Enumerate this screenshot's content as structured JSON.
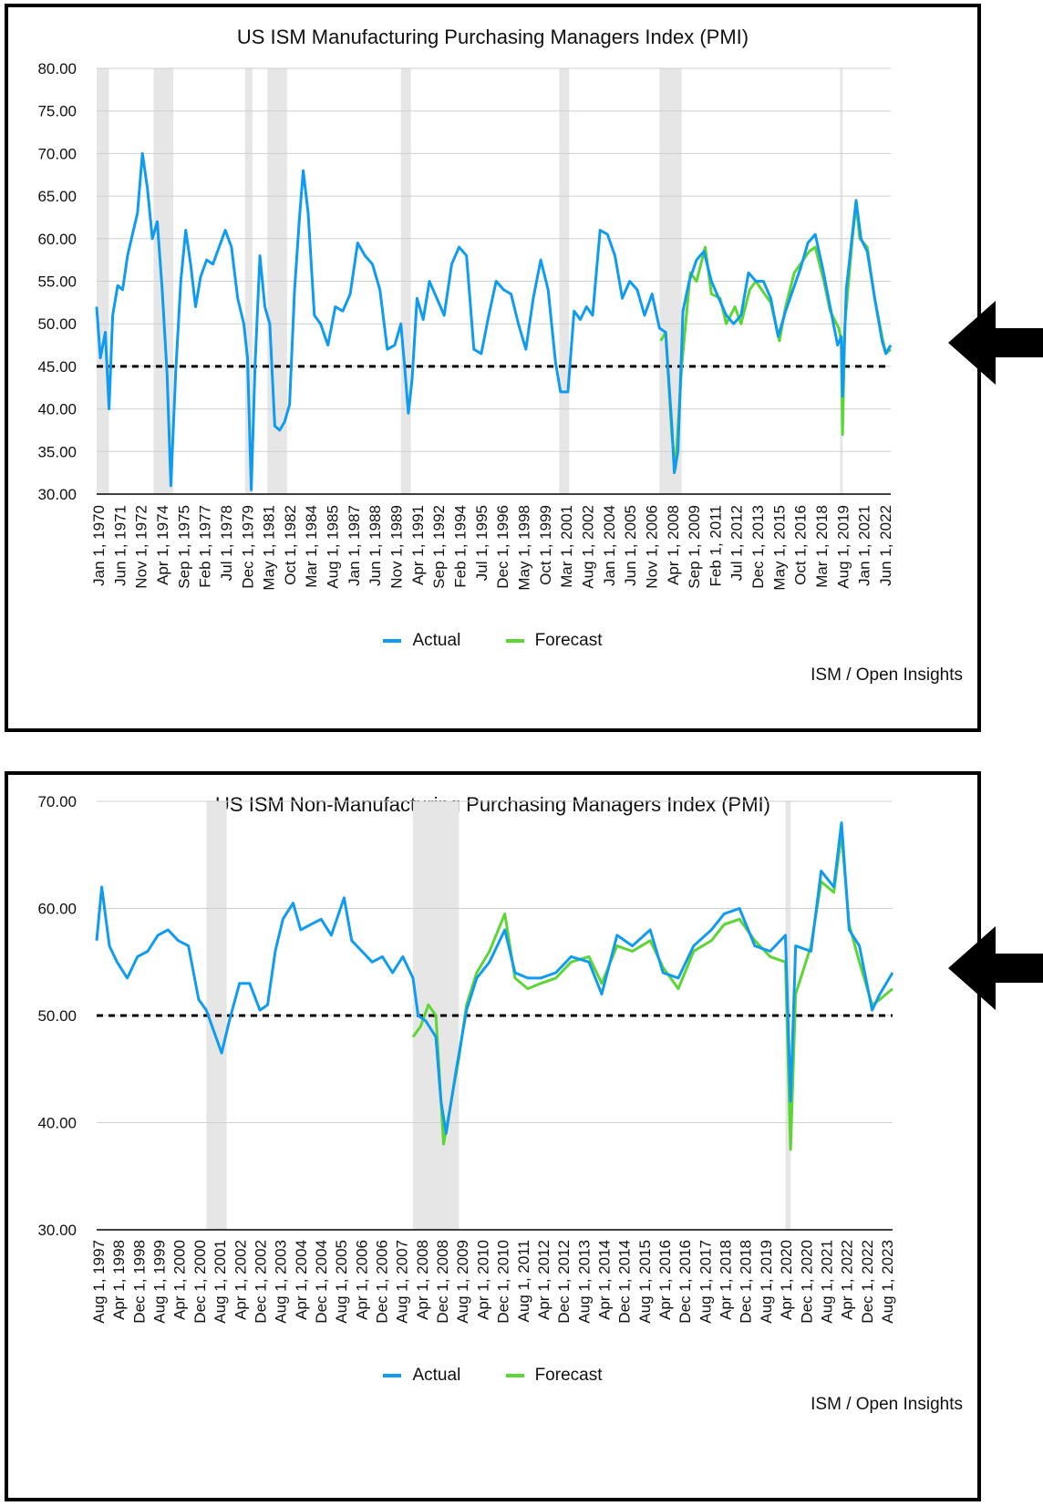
{
  "colors": {
    "actual": "#0f9bf0",
    "forecast": "#5cd634",
    "recession": "#e6e6e6",
    "grid": "#cfcfcf"
  },
  "icons": {
    "pointer": "arrow-left-icon"
  },
  "charts": [
    {
      "type": "line",
      "title": "US ISM Manufacturing Purchasing Managers Index (PMI)",
      "source": "ISM / Open Insights",
      "legend": {
        "actual": "Actual",
        "forecast": "Forecast"
      },
      "ylim": [
        30,
        80
      ],
      "ytick_labels": [
        "30.00",
        "35.00",
        "40.00",
        "45.00",
        "50.00",
        "55.00",
        "60.00",
        "65.00",
        "70.00",
        "75.00",
        "80.00"
      ],
      "xlim": [
        "Jan 1, 1970",
        "Jul 1, 2023"
      ],
      "x_tick_labels": [
        "Jan 1, 1970",
        "Jun 1, 1971",
        "Nov 1, 1972",
        "Apr 1, 1974",
        "Sep 1, 1975",
        "Feb 1, 1977",
        "Jul 1, 1978",
        "Dec 1, 1979",
        "May 1, 1981",
        "Oct 1, 1982",
        "Mar 1, 1984",
        "Aug 1, 1985",
        "Jan 1, 1987",
        "Jun 1, 1988",
        "Nov 1, 1989",
        "Apr 1, 1991",
        "Sep 1, 1992",
        "Feb 1, 1994",
        "Jul 1, 1995",
        "Dec 1, 1996",
        "May 1, 1998",
        "Oct 1, 1999",
        "Mar 1, 2001",
        "Aug 1, 2002",
        "Jan 1, 2004",
        "Jun 1, 2005",
        "Nov 1, 2006",
        "Apr 1, 2008",
        "Sep 1, 2009",
        "Feb 1, 2011",
        "Jul 1, 2012",
        "Dec 1, 2013",
        "May 1, 2015",
        "Oct 1, 2016",
        "Mar 1, 2018",
        "Aug 1, 2019",
        "Jan 1, 2021",
        "Jun 1, 2022"
      ],
      "reference_line": 45,
      "recessions": [
        [
          "1970-01",
          "1970-11"
        ],
        [
          "1973-11",
          "1975-03"
        ],
        [
          "1980-01",
          "1980-07"
        ],
        [
          "1981-07",
          "1982-11"
        ],
        [
          "1990-07",
          "1991-03"
        ],
        [
          "2001-03",
          "2001-11"
        ],
        [
          "2007-12",
          "2009-06"
        ],
        [
          "2020-02",
          "2020-04"
        ]
      ],
      "series": [
        {
          "name": "Actual",
          "role": "actual",
          "x": [
            "1970-01",
            "1970-04",
            "1970-08",
            "1970-11",
            "1971-02",
            "1971-06",
            "1971-10",
            "1972-02",
            "1972-06",
            "1972-10",
            "1973-02",
            "1973-06",
            "1973-10",
            "1974-02",
            "1974-06",
            "1974-10",
            "1975-01",
            "1975-05",
            "1975-09",
            "1976-01",
            "1976-05",
            "1976-09",
            "1977-01",
            "1977-06",
            "1977-11",
            "1978-04",
            "1978-09",
            "1979-02",
            "1979-07",
            "1979-12",
            "1980-03",
            "1980-06",
            "1980-09",
            "1981-01",
            "1981-05",
            "1981-09",
            "1982-01",
            "1982-05",
            "1982-09",
            "1983-01",
            "1983-05",
            "1983-09",
            "1983-12",
            "1984-04",
            "1984-09",
            "1985-02",
            "1985-08",
            "1986-02",
            "1986-08",
            "1987-02",
            "1987-08",
            "1988-02",
            "1988-08",
            "1989-02",
            "1989-08",
            "1990-02",
            "1990-07",
            "1990-10",
            "1991-01",
            "1991-04",
            "1991-08",
            "1992-01",
            "1992-06",
            "1992-12",
            "1993-06",
            "1993-12",
            "1994-06",
            "1994-12",
            "1995-06",
            "1995-12",
            "1996-06",
            "1996-12",
            "1997-06",
            "1997-12",
            "1998-06",
            "1998-12",
            "1999-06",
            "1999-12",
            "2000-06",
            "2000-12",
            "2001-04",
            "2001-10",
            "2002-03",
            "2002-08",
            "2003-01",
            "2003-06",
            "2003-12",
            "2004-06",
            "2004-12",
            "2005-06",
            "2005-12",
            "2006-06",
            "2006-12",
            "2007-06",
            "2007-12",
            "2008-05",
            "2008-10",
            "2008-12",
            "2009-03",
            "2009-07",
            "2009-12",
            "2010-06",
            "2010-12",
            "2011-06",
            "2011-12",
            "2012-06",
            "2012-12",
            "2013-06",
            "2013-12",
            "2014-06",
            "2014-12",
            "2015-06",
            "2015-12",
            "2016-06",
            "2016-12",
            "2017-06",
            "2017-12",
            "2018-06",
            "2018-12",
            "2019-06",
            "2019-12",
            "2020-03",
            "2020-04",
            "2020-07",
            "2020-12",
            "2021-03",
            "2021-07",
            "2021-12",
            "2022-06",
            "2022-12",
            "2023-03",
            "2023-07"
          ],
          "values": [
            52.0,
            46.0,
            49.0,
            40.0,
            51.0,
            54.5,
            54.0,
            58.0,
            60.5,
            63.0,
            70.0,
            66.0,
            60.0,
            62.0,
            54.0,
            44.0,
            31.0,
            44.5,
            55.0,
            61.0,
            57.0,
            52.0,
            55.5,
            57.5,
            57.0,
            59.0,
            61.0,
            59.0,
            53.0,
            50.0,
            46.0,
            30.5,
            45.0,
            58.0,
            52.0,
            50.0,
            38.0,
            37.5,
            38.5,
            40.5,
            54.0,
            62.5,
            68.0,
            63.0,
            51.0,
            50.0,
            47.5,
            52.0,
            51.5,
            53.5,
            59.5,
            58.0,
            57.0,
            54.0,
            47.0,
            47.5,
            50.0,
            45.0,
            39.5,
            43.5,
            53.0,
            50.5,
            55.0,
            53.0,
            51.0,
            57.0,
            59.0,
            58.0,
            47.0,
            46.5,
            51.0,
            55.0,
            54.0,
            53.5,
            50.0,
            47.0,
            53.0,
            57.5,
            54.0,
            45.5,
            42.0,
            42.0,
            51.5,
            50.5,
            52.0,
            51.0,
            61.0,
            60.5,
            58.0,
            53.0,
            55.0,
            54.0,
            51.0,
            53.5,
            49.5,
            49.0,
            38.0,
            32.5,
            35.0,
            51.5,
            55.0,
            57.5,
            58.5,
            55.0,
            53.0,
            51.0,
            50.0,
            51.0,
            56.0,
            55.0,
            55.0,
            53.0,
            48.5,
            51.5,
            54.0,
            56.5,
            59.5,
            60.5,
            56.5,
            52.0,
            47.5,
            48.5,
            41.5,
            54.0,
            60.5,
            64.5,
            60.0,
            58.5,
            53.0,
            48.0,
            46.5,
            47.5
          ]
        },
        {
          "name": "Forecast",
          "role": "forecast",
          "x": [
            "2008-01",
            "2008-05",
            "2008-10",
            "2009-01",
            "2009-06",
            "2010-01",
            "2010-06",
            "2011-01",
            "2011-06",
            "2012-01",
            "2012-06",
            "2013-01",
            "2013-06",
            "2014-01",
            "2014-06",
            "2015-01",
            "2015-06",
            "2016-01",
            "2016-06",
            "2017-01",
            "2017-06",
            "2018-01",
            "2018-06",
            "2019-01",
            "2019-06",
            "2020-01",
            "2020-03",
            "2020-04",
            "2020-06",
            "2020-12",
            "2021-03",
            "2021-06",
            "2021-12",
            "2022-06",
            "2022-12",
            "2023-03",
            "2023-07"
          ],
          "values": [
            48.0,
            49.0,
            37.0,
            33.0,
            45.0,
            56.0,
            55.0,
            59.0,
            53.5,
            53.0,
            50.0,
            52.0,
            50.0,
            54.0,
            55.0,
            53.5,
            52.5,
            48.0,
            52.0,
            56.0,
            57.0,
            58.5,
            59.0,
            55.0,
            51.5,
            49.5,
            48.0,
            37.0,
            50.0,
            60.0,
            64.0,
            60.0,
            59.0,
            53.0,
            48.5,
            46.5,
            47.0
          ]
        }
      ]
    },
    {
      "type": "line",
      "title": "US ISM Non-Manufacturing Purchasing Managers Index (PMI)",
      "source": "ISM / Open Insights",
      "legend": {
        "actual": "Actual",
        "forecast": "Forecast"
      },
      "ylim": [
        30,
        70
      ],
      "ytick_labels": [
        "30.00",
        "40.00",
        "50.00",
        "60.00",
        "70.00"
      ],
      "xlim": [
        "Aug 1, 1997",
        "Aug 1, 2023"
      ],
      "x_tick_labels": [
        "Aug 1, 1997",
        "Apr 1, 1998",
        "Dec 1, 1998",
        "Aug 1, 1999",
        "Apr 1, 2000",
        "Dec 1, 2000",
        "Aug 1, 2001",
        "Apr 1, 2002",
        "Dec 1, 2002",
        "Aug 1, 2003",
        "Apr 1, 2004",
        "Dec 1, 2004",
        "Aug 1, 2005",
        "Apr 1, 2006",
        "Dec 1, 2006",
        "Aug 1, 2007",
        "Apr 1, 2008",
        "Dec 1, 2008",
        "Aug 1, 2009",
        "Apr 1, 2010",
        "Dec 1, 2010",
        "Aug 1, 2011",
        "Apr 1, 2012",
        "Dec 1, 2012",
        "Aug 1, 2013",
        "Apr 1, 2014",
        "Dec 1, 2014",
        "Aug 1, 2015",
        "Apr 1, 2016",
        "Dec 1, 2016",
        "Aug 1, 2017",
        "Apr 1, 2018",
        "Dec 1, 2018",
        "Aug 1, 2019",
        "Apr 1, 2020",
        "Dec 1, 2020",
        "Aug 1, 2021",
        "Apr 1, 2022",
        "Dec 1, 2022",
        "Aug 1, 2023"
      ],
      "reference_line": 50,
      "recessions": [
        [
          "2001-03",
          "2001-11"
        ],
        [
          "2007-12",
          "2009-06"
        ],
        [
          "2020-02",
          "2020-04"
        ]
      ],
      "series": [
        {
          "name": "Actual",
          "role": "actual",
          "x": [
            "1997-08",
            "1997-10",
            "1998-01",
            "1998-04",
            "1998-08",
            "1998-12",
            "1999-04",
            "1999-08",
            "1999-12",
            "2000-04",
            "2000-08",
            "2000-12",
            "2001-03",
            "2001-06",
            "2001-09",
            "2001-12",
            "2002-04",
            "2002-08",
            "2002-12",
            "2003-03",
            "2003-06",
            "2003-09",
            "2004-01",
            "2004-04",
            "2004-08",
            "2004-12",
            "2005-04",
            "2005-09",
            "2005-12",
            "2006-04",
            "2006-08",
            "2006-12",
            "2007-04",
            "2007-08",
            "2007-12",
            "2008-02",
            "2008-05",
            "2008-09",
            "2008-11",
            "2009-01",
            "2009-05",
            "2009-09",
            "2010-01",
            "2010-06",
            "2010-12",
            "2011-04",
            "2011-09",
            "2012-02",
            "2012-08",
            "2013-02",
            "2013-09",
            "2014-02",
            "2014-08",
            "2015-02",
            "2015-09",
            "2016-02",
            "2016-08",
            "2017-02",
            "2017-09",
            "2018-02",
            "2018-08",
            "2019-02",
            "2019-08",
            "2020-02",
            "2020-04",
            "2020-06",
            "2020-12",
            "2021-04",
            "2021-09",
            "2021-12",
            "2022-03",
            "2022-07",
            "2022-12",
            "2023-03",
            "2023-08"
          ],
          "values": [
            57.0,
            62.0,
            56.5,
            55.0,
            53.5,
            55.5,
            56.0,
            57.5,
            58.0,
            57.0,
            56.5,
            51.5,
            50.5,
            48.5,
            46.5,
            49.5,
            53.0,
            53.0,
            50.5,
            51.0,
            56.0,
            59.0,
            60.5,
            58.0,
            58.5,
            59.0,
            57.5,
            61.0,
            57.0,
            56.0,
            55.0,
            55.5,
            54.0,
            55.5,
            53.5,
            50.0,
            49.5,
            48.0,
            42.0,
            39.0,
            45.0,
            50.5,
            53.5,
            55.0,
            58.0,
            54.0,
            53.5,
            53.5,
            54.0,
            55.5,
            55.0,
            52.0,
            57.5,
            56.5,
            58.0,
            54.0,
            53.5,
            56.5,
            58.0,
            59.5,
            60.0,
            56.5,
            56.0,
            57.5,
            42.0,
            56.5,
            56.0,
            63.5,
            62.0,
            68.0,
            58.0,
            56.5,
            50.5,
            52.0,
            54.0
          ]
        },
        {
          "name": "Forecast",
          "role": "forecast",
          "x": [
            "2007-12",
            "2008-03",
            "2008-06",
            "2008-09",
            "2008-12",
            "2009-03",
            "2009-06",
            "2009-09",
            "2010-01",
            "2010-06",
            "2010-12",
            "2011-04",
            "2011-09",
            "2012-02",
            "2012-08",
            "2013-02",
            "2013-09",
            "2014-02",
            "2014-08",
            "2015-02",
            "2015-09",
            "2016-02",
            "2016-08",
            "2017-02",
            "2017-09",
            "2018-02",
            "2018-08",
            "2019-02",
            "2019-08",
            "2020-02",
            "2020-04",
            "2020-06",
            "2020-12",
            "2021-04",
            "2021-09",
            "2021-12",
            "2022-03",
            "2022-07",
            "2022-12",
            "2023-03",
            "2023-08"
          ],
          "values": [
            48.0,
            49.0,
            51.0,
            50.0,
            38.0,
            42.0,
            46.0,
            51.0,
            54.0,
            56.0,
            59.5,
            53.5,
            52.5,
            53.0,
            53.5,
            55.0,
            55.5,
            53.0,
            56.5,
            56.0,
            57.0,
            54.5,
            52.5,
            56.0,
            57.0,
            58.5,
            59.0,
            57.0,
            55.5,
            55.0,
            37.5,
            52.0,
            56.5,
            62.5,
            61.5,
            67.0,
            58.5,
            55.0,
            51.0,
            51.5,
            52.5
          ]
        }
      ]
    }
  ]
}
